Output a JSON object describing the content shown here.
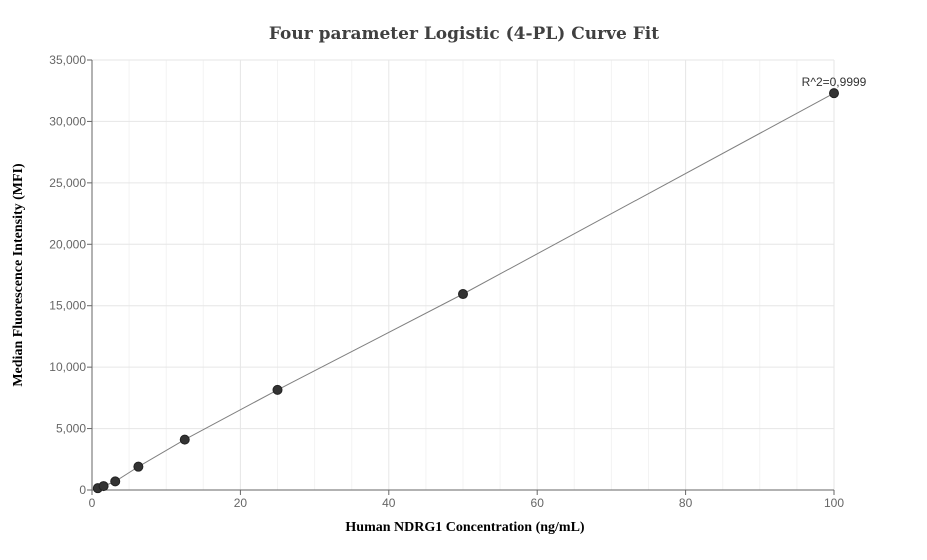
{
  "chart_data": {
    "type": "scatter",
    "title": "Four parameter Logistic (4-PL) Curve Fit",
    "xlabel": "Human NDRG1 Concentration (ng/mL)",
    "ylabel": "Median Fluorescence Intensity (MFI)",
    "xlim": [
      0,
      100
    ],
    "ylim": [
      0,
      35000
    ],
    "x_ticks": [
      0,
      20,
      40,
      60,
      80,
      100
    ],
    "x_tick_labels": [
      "0",
      "20",
      "40",
      "60",
      "80",
      "100"
    ],
    "y_ticks": [
      0,
      5000,
      10000,
      15000,
      20000,
      25000,
      30000,
      35000
    ],
    "y_tick_labels": [
      "0",
      "5,000",
      "10,000",
      "15,000",
      "20,000",
      "25,000",
      "30,000",
      "35,000"
    ],
    "grid": true,
    "annotation": "R^2=0,9999",
    "point_color": "#333333",
    "line_color": "#808080",
    "points": [
      {
        "x": 0.78,
        "y": 150
      },
      {
        "x": 1.56,
        "y": 320
      },
      {
        "x": 3.13,
        "y": 700
      },
      {
        "x": 6.25,
        "y": 1900
      },
      {
        "x": 12.5,
        "y": 4100
      },
      {
        "x": 25,
        "y": 8150
      },
      {
        "x": 50,
        "y": 15950
      },
      {
        "x": 100,
        "y": 32300
      }
    ]
  }
}
